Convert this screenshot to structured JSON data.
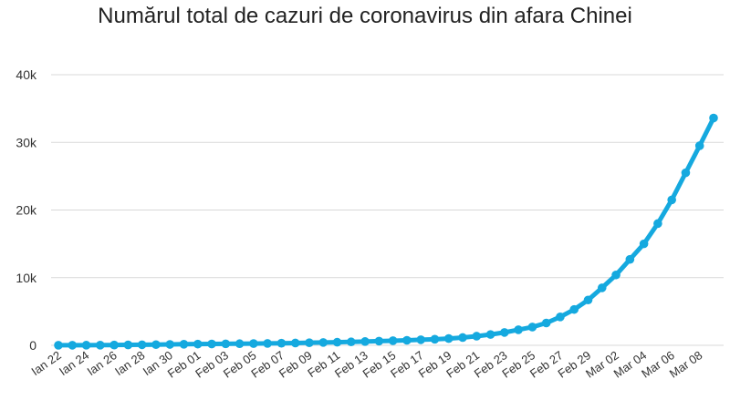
{
  "chart_data": {
    "type": "line",
    "title": "Numărul total de cazuri de coronavirus din afara Chinei",
    "xlabel": "",
    "ylabel": "",
    "x": [
      "Ian 22",
      "Ian 23",
      "Ian 24",
      "Ian 25",
      "Ian 26",
      "Ian 27",
      "Ian 28",
      "Ian 29",
      "Ian 30",
      "Ian 31",
      "Feb 01",
      "Feb 02",
      "Feb 03",
      "Feb 04",
      "Feb 05",
      "Feb 06",
      "Feb 07",
      "Feb 08",
      "Feb 09",
      "Feb 10",
      "Feb 11",
      "Feb 12",
      "Feb 13",
      "Feb 14",
      "Feb 15",
      "Feb 16",
      "Feb 17",
      "Feb 18",
      "Feb 19",
      "Feb 20",
      "Feb 21",
      "Feb 22",
      "Feb 23",
      "Feb 24",
      "Feb 25",
      "Feb 26",
      "Feb 27",
      "Feb 28",
      "Feb 29",
      "Mar 01",
      "Mar 02",
      "Mar 03",
      "Mar 04",
      "Mar 05",
      "Mar 06",
      "Mar 07",
      "Mar 08",
      "Mar 09"
    ],
    "x_tick_labels": [
      "Ian 22",
      "Ian 24",
      "Ian 26",
      "Ian 28",
      "Ian 30",
      "Feb 01",
      "Feb 03",
      "Feb 05",
      "Feb 07",
      "Feb 09",
      "Feb 11",
      "Feb 13",
      "Feb 15",
      "Feb 17",
      "Feb 19",
      "Feb 21",
      "Feb 23",
      "Feb 25",
      "Feb 27",
      "Feb 29",
      "Mar 02",
      "Mar 04",
      "Mar 06",
      "Mar 08"
    ],
    "series": [
      {
        "color": "#15a9df",
        "values": [
          10,
          15,
          20,
          25,
          40,
          60,
          80,
          100,
          130,
          160,
          180,
          200,
          220,
          240,
          260,
          280,
          310,
          340,
          380,
          420,
          460,
          510,
          560,
          620,
          680,
          740,
          820,
          900,
          1000,
          1150,
          1350,
          1600,
          1900,
          2300,
          2700,
          3300,
          4200,
          5300,
          6700,
          8500,
          10400,
          12700,
          15000,
          18000,
          21500,
          25500,
          29500,
          33600
        ]
      }
    ],
    "yticks": [
      0,
      10000,
      20000,
      30000,
      40000
    ],
    "ytick_labels": [
      "0",
      "10k",
      "20k",
      "30k",
      "40k"
    ],
    "ylim": [
      0,
      40000
    ],
    "grid": true,
    "legend": "none"
  }
}
